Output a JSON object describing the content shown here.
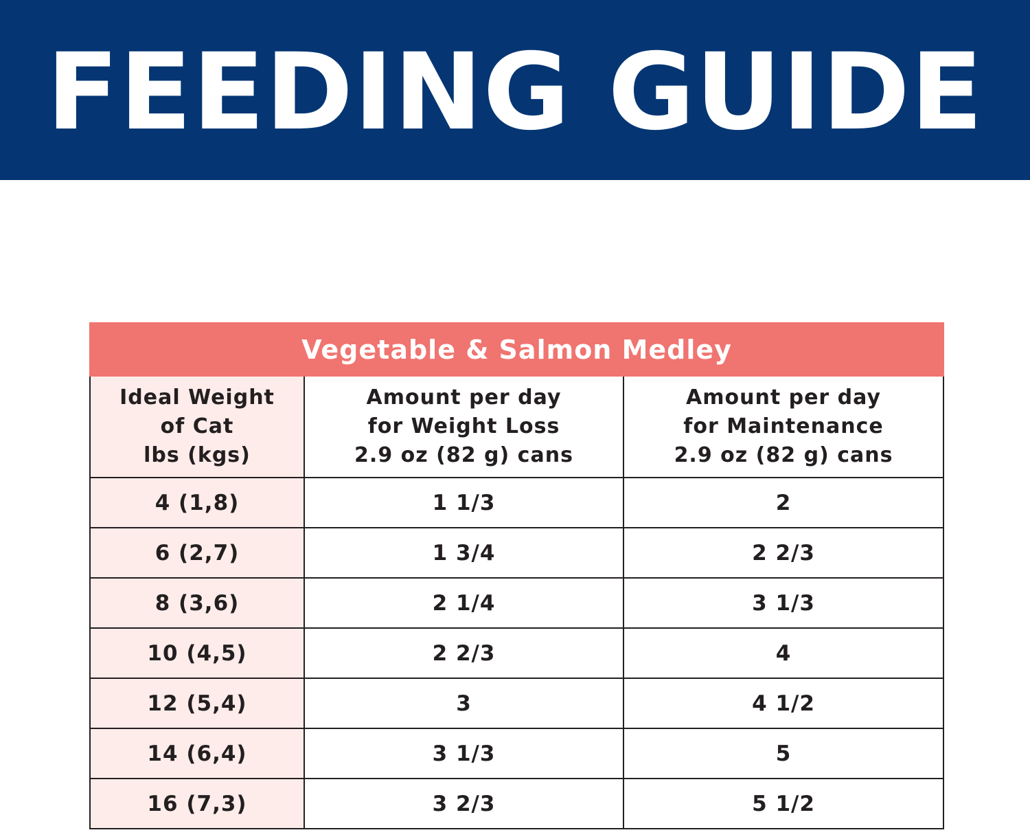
{
  "banner": {
    "title": "FEEDING GUIDE",
    "background_color": "#053673",
    "text_color": "#ffffff"
  },
  "table": {
    "caption": "Vegetable & Salmon Medley",
    "caption_color": "#f07470",
    "weight_column_color": "#fdece9",
    "columns": [
      {
        "lines": [
          "Ideal Weight",
          "of Cat",
          "lbs (kgs)"
        ]
      },
      {
        "lines": [
          "Amount per day",
          "for Weight Loss",
          "2.9 oz (82 g) cans"
        ]
      },
      {
        "lines": [
          "Amount per day",
          "for Maintenance",
          "2.9 oz (82 g) cans"
        ]
      }
    ],
    "rows": [
      {
        "weight": "4 (1,8)",
        "weight_loss": "1 1/3",
        "maintenance": "2"
      },
      {
        "weight": "6 (2,7)",
        "weight_loss": "1 3/4",
        "maintenance": "2 2/3"
      },
      {
        "weight": "8 (3,6)",
        "weight_loss": "2 1/4",
        "maintenance": "3 1/3"
      },
      {
        "weight": "10 (4,5)",
        "weight_loss": "2 2/3",
        "maintenance": "4"
      },
      {
        "weight": "12 (5,4)",
        "weight_loss": "3",
        "maintenance": "4 1/2"
      },
      {
        "weight": "14 (6,4)",
        "weight_loss": "3 1/3",
        "maintenance": "5"
      },
      {
        "weight": "16 (7,3)",
        "weight_loss": "3 2/3",
        "maintenance": "5 1/2"
      }
    ]
  }
}
